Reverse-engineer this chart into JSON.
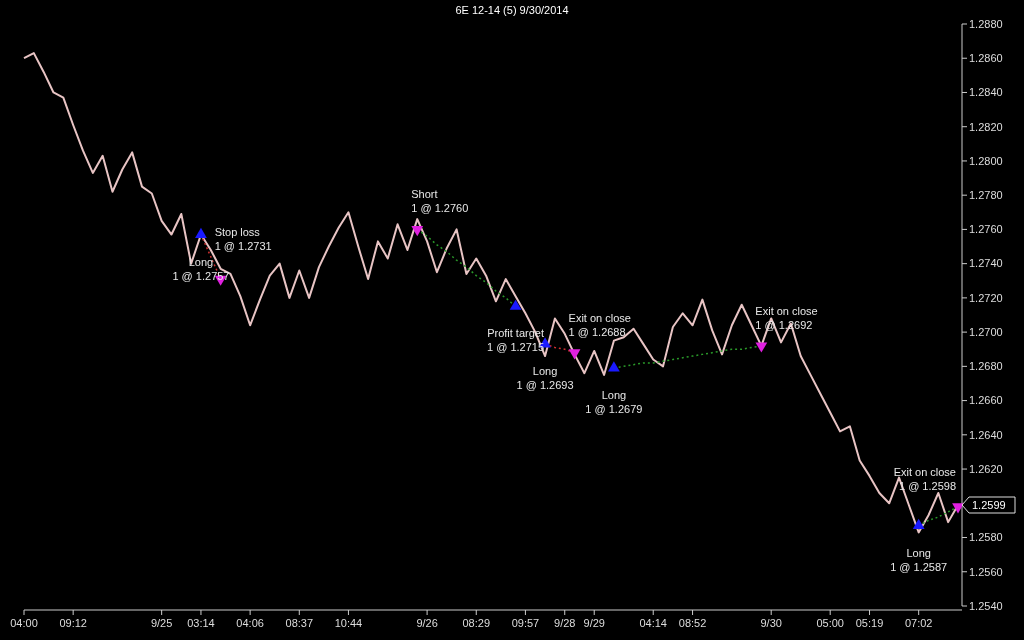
{
  "chart_data": {
    "type": "line",
    "title": "6E 12-14 (5) 9/30/2014",
    "categories": [
      "04:00",
      null,
      null,
      null,
      null,
      "09:12",
      null,
      null,
      null,
      null,
      null,
      null,
      null,
      null,
      "9/25",
      null,
      null,
      null,
      "03:14",
      null,
      null,
      null,
      null,
      "04:06",
      null,
      null,
      null,
      null,
      "08:37",
      null,
      null,
      null,
      null,
      "10:44",
      null,
      null,
      null,
      null,
      null,
      null,
      null,
      "9/26",
      null,
      null,
      null,
      null,
      "08:29",
      null,
      null,
      null,
      null,
      "09:57",
      null,
      null,
      null,
      "9/28",
      null,
      null,
      "9/29",
      null,
      null,
      null,
      null,
      null,
      "04:14",
      null,
      null,
      null,
      "08:52",
      null,
      null,
      null,
      null,
      null,
      null,
      null,
      "9/30",
      null,
      null,
      null,
      null,
      null,
      "05:00",
      null,
      null,
      null,
      "05:19",
      null,
      null,
      null,
      null,
      "07:02",
      null,
      null,
      null,
      null
    ],
    "ylim": [
      1.254,
      1.288
    ],
    "yticks": [
      {
        "value": 1.254,
        "label": "1.2540"
      },
      {
        "value": 1.256,
        "label": "1.2560"
      },
      {
        "value": 1.258,
        "label": "1.2580"
      },
      {
        "value": 1.262,
        "label": "1.2620"
      },
      {
        "value": 1.264,
        "label": "1.2640"
      },
      {
        "value": 1.266,
        "label": "1.2660"
      },
      {
        "value": 1.268,
        "label": "1.2680"
      },
      {
        "value": 1.27,
        "label": "1.2700"
      },
      {
        "value": 1.272,
        "label": "1.2720"
      },
      {
        "value": 1.274,
        "label": "1.2740"
      },
      {
        "value": 1.276,
        "label": "1.2760"
      },
      {
        "value": 1.278,
        "label": "1.2780"
      },
      {
        "value": 1.28,
        "label": "1.2800"
      },
      {
        "value": 1.282,
        "label": "1.2820"
      },
      {
        "value": 1.284,
        "label": "1.2840"
      },
      {
        "value": 1.286,
        "label": "1.2860"
      },
      {
        "value": 1.288,
        "label": "1.2880"
      }
    ],
    "grid": false,
    "series": [
      {
        "color": "#e8c4c4",
        "values": [
          1.286,
          1.2863,
          1.2852,
          1.284,
          1.2837,
          1.2821,
          1.2806,
          1.2793,
          1.2803,
          1.2782,
          1.2795,
          1.2805,
          1.2785,
          1.2781,
          1.2765,
          1.2757,
          1.2769,
          1.274,
          1.2757,
          1.2748,
          1.2737,
          1.2734,
          1.2721,
          1.2704,
          1.2719,
          1.2733,
          1.274,
          1.272,
          1.2736,
          1.272,
          1.2738,
          1.275,
          1.2761,
          1.277,
          1.275,
          1.2731,
          1.2753,
          1.2743,
          1.2763,
          1.2748,
          1.2766,
          1.2753,
          1.2735,
          1.2749,
          1.276,
          1.2734,
          1.2743,
          1.2733,
          1.2718,
          1.2731,
          1.2721,
          1.2711,
          1.27,
          1.2686,
          1.2708,
          1.2699,
          1.2687,
          1.2676,
          1.2689,
          1.2675,
          1.2695,
          1.2697,
          1.2702,
          1.2693,
          1.2684,
          1.268,
          1.2703,
          1.2711,
          1.2704,
          1.2719,
          1.2701,
          1.2687,
          1.2704,
          1.2716,
          1.2704,
          1.2692,
          1.2708,
          1.2694,
          1.2705,
          1.2686,
          1.2675,
          1.2664,
          1.2653,
          1.2642,
          1.2645,
          1.2625,
          1.2616,
          1.2606,
          1.26,
          1.2615,
          1.2599,
          1.2583,
          1.2593,
          1.2606,
          1.2589,
          1.2599
        ]
      },
      {
        "type": "line",
        "color": "#d03030",
        "line_style": "dotted",
        "values": [
          null,
          null,
          null,
          null,
          null,
          null,
          null,
          null,
          null,
          null,
          null,
          null,
          null,
          null,
          null,
          null,
          null,
          null,
          1.2757,
          1.2744,
          1.2731,
          null,
          null,
          null,
          null,
          null,
          null,
          null,
          null,
          null,
          null,
          null,
          null,
          null,
          null,
          null,
          null,
          null,
          null,
          null,
          null,
          null,
          null,
          null,
          null,
          null,
          null,
          null,
          null,
          null,
          null,
          null,
          null,
          null,
          null,
          null,
          null,
          null,
          null,
          null,
          null,
          null,
          null,
          null,
          null,
          null,
          null,
          null,
          null,
          null,
          null,
          null,
          null,
          null,
          null,
          null,
          null,
          null,
          null,
          null,
          null,
          null,
          null,
          null,
          null,
          null,
          null,
          null,
          null,
          null,
          null,
          null,
          null,
          null,
          null,
          null
        ]
      },
      {
        "type": "line",
        "color": "#2a9a2a",
        "line_style": "dotted",
        "values": [
          null,
          null,
          null,
          null,
          null,
          null,
          null,
          null,
          null,
          null,
          null,
          null,
          null,
          null,
          null,
          null,
          null,
          null,
          null,
          null,
          null,
          null,
          null,
          null,
          null,
          null,
          null,
          null,
          null,
          null,
          null,
          null,
          null,
          null,
          null,
          null,
          null,
          null,
          null,
          null,
          1.276,
          1.2756,
          1.2751,
          1.2747,
          1.2742,
          1.2738,
          1.2733,
          1.2729,
          1.2724,
          1.272,
          1.2715,
          null,
          null,
          null,
          null,
          null,
          null,
          null,
          null,
          null,
          null,
          null,
          null,
          null,
          null,
          null,
          null,
          null,
          null,
          null,
          null,
          null,
          null,
          null,
          null,
          null,
          null,
          null,
          null,
          null,
          null,
          null,
          null,
          null,
          null,
          null,
          null,
          null,
          null,
          null,
          null,
          null,
          null,
          null,
          null,
          null
        ]
      },
      {
        "type": "line",
        "color": "#d03030",
        "line_style": "dotted",
        "values": [
          null,
          null,
          null,
          null,
          null,
          null,
          null,
          null,
          null,
          null,
          null,
          null,
          null,
          null,
          null,
          null,
          null,
          null,
          null,
          null,
          null,
          null,
          null,
          null,
          null,
          null,
          null,
          null,
          null,
          null,
          null,
          null,
          null,
          null,
          null,
          null,
          null,
          null,
          null,
          null,
          null,
          null,
          null,
          null,
          null,
          null,
          null,
          null,
          null,
          null,
          null,
          null,
          null,
          1.2693,
          1.2691,
          1.269,
          1.2688,
          null,
          null,
          null,
          null,
          null,
          null,
          null,
          null,
          null,
          null,
          null,
          null,
          null,
          null,
          null,
          null,
          null,
          null,
          null,
          null,
          null,
          null,
          null,
          null,
          null,
          null,
          null,
          null,
          null,
          null,
          null,
          null,
          null,
          null,
          null,
          null,
          null,
          null,
          null
        ]
      },
      {
        "type": "line",
        "color": "#2a9a2a",
        "line_style": "dotted",
        "values": [
          null,
          null,
          null,
          null,
          null,
          null,
          null,
          null,
          null,
          null,
          null,
          null,
          null,
          null,
          null,
          null,
          null,
          null,
          null,
          null,
          null,
          null,
          null,
          null,
          null,
          null,
          null,
          null,
          null,
          null,
          null,
          null,
          null,
          null,
          null,
          null,
          null,
          null,
          null,
          null,
          null,
          null,
          null,
          null,
          null,
          null,
          null,
          null,
          null,
          null,
          null,
          null,
          null,
          null,
          null,
          null,
          null,
          null,
          null,
          null,
          1.2679,
          1.268,
          1.2681,
          1.2682,
          1.2682,
          1.2683,
          1.2684,
          1.2685,
          1.2686,
          1.2687,
          1.2688,
          1.2689,
          1.269,
          1.269,
          1.2691,
          1.2692,
          null,
          null,
          null,
          null,
          null,
          null,
          null,
          null,
          null,
          null,
          null,
          null,
          null,
          null,
          null,
          null,
          null,
          null,
          null,
          null
        ]
      },
      {
        "type": "line",
        "color": "#2a9a2a",
        "line_style": "dotted",
        "values": [
          null,
          null,
          null,
          null,
          null,
          null,
          null,
          null,
          null,
          null,
          null,
          null,
          null,
          null,
          null,
          null,
          null,
          null,
          null,
          null,
          null,
          null,
          null,
          null,
          null,
          null,
          null,
          null,
          null,
          null,
          null,
          null,
          null,
          null,
          null,
          null,
          null,
          null,
          null,
          null,
          null,
          null,
          null,
          null,
          null,
          null,
          null,
          null,
          null,
          null,
          null,
          null,
          null,
          null,
          null,
          null,
          null,
          null,
          null,
          null,
          null,
          null,
          null,
          null,
          null,
          null,
          null,
          null,
          null,
          null,
          null,
          null,
          null,
          null,
          null,
          null,
          null,
          null,
          null,
          null,
          null,
          null,
          null,
          null,
          null,
          null,
          null,
          null,
          null,
          null,
          null,
          1.2587,
          1.259,
          1.2592,
          1.2595,
          1.2598
        ]
      },
      {
        "type": "scatter",
        "color": "#1a1aff",
        "marker": "triangle",
        "values": [
          null,
          null,
          null,
          null,
          null,
          null,
          null,
          null,
          null,
          null,
          null,
          null,
          null,
          null,
          null,
          null,
          null,
          null,
          1.2757,
          null,
          null,
          null,
          null,
          null,
          null,
          null,
          null,
          null,
          null,
          null,
          null,
          null,
          null,
          null,
          null,
          null,
          null,
          null,
          null,
          null,
          null,
          null,
          null,
          null,
          null,
          null,
          null,
          null,
          null,
          null,
          1.2715,
          null,
          null,
          1.2693,
          null,
          null,
          null,
          null,
          null,
          null,
          1.2679,
          null,
          null,
          null,
          null,
          null,
          null,
          null,
          null,
          null,
          null,
          null,
          null,
          null,
          null,
          null,
          null,
          null,
          null,
          null,
          null,
          null,
          null,
          null,
          null,
          null,
          null,
          null,
          null,
          null,
          null,
          1.2587,
          null,
          null,
          null,
          null
        ]
      },
      {
        "type": "scatter",
        "color": "#e020e0",
        "marker": "triangle",
        "values": [
          null,
          null,
          null,
          null,
          null,
          null,
          null,
          null,
          null,
          null,
          null,
          null,
          null,
          null,
          null,
          null,
          null,
          null,
          null,
          null,
          1.2731,
          null,
          null,
          null,
          null,
          null,
          null,
          null,
          null,
          null,
          null,
          null,
          null,
          null,
          null,
          null,
          null,
          null,
          null,
          null,
          1.276,
          null,
          null,
          null,
          null,
          null,
          null,
          null,
          null,
          null,
          null,
          null,
          null,
          null,
          null,
          null,
          1.2688,
          null,
          null,
          null,
          null,
          null,
          null,
          null,
          null,
          null,
          null,
          null,
          null,
          null,
          null,
          null,
          null,
          null,
          null,
          1.2692,
          null,
          null,
          null,
          null,
          null,
          null,
          null,
          null,
          null,
          null,
          null,
          null,
          null,
          null,
          null,
          null,
          null,
          null,
          null,
          1.2598
        ]
      }
    ],
    "annotations": [
      "Long\n1 @ 1.2757",
      "Stop loss\n1 @ 1.2731",
      "Short\n1 @ 1.2760",
      "Profit target\n1 @ 1.2715",
      "Long\n1 @ 1.2693",
      "Exit on close\n1 @ 1.2688",
      "Long\n1 @ 1.2679",
      "Exit on close\n1 @ 1.2692",
      "Long\n1 @ 1.2587",
      "Exit on close\n1 @ 1.2598",
      "1.2599"
    ]
  }
}
